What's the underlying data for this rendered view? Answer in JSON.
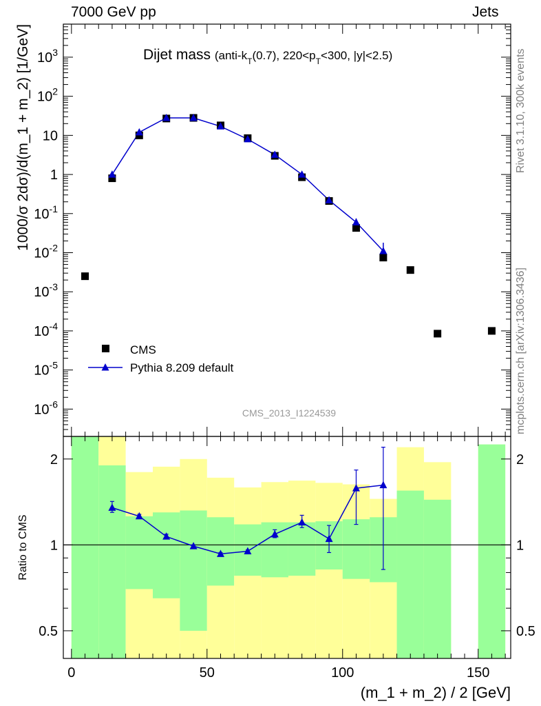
{
  "header": {
    "left": "7000 GeV pp",
    "right": "Jets"
  },
  "side_labels": {
    "upper": "Rivet 3.1.10,  300k events",
    "lower": "mcplots.cern.ch [arXiv:1306.3436]"
  },
  "chart_data": [
    {
      "type": "scatter",
      "panel": "main",
      "title": "Dijet mass",
      "title_note": "(anti-k_T(0.7), 220<p_T<300, |y|<2.5)",
      "watermark": "CMS_2013_I1224539",
      "ylabel": "1000/σ 2dσ)/d(m_1 + m_2) [1/GeV]",
      "yscale": "log",
      "ylim": [
        2e-07,
        7000
      ],
      "xlim": [
        -3,
        162
      ],
      "y_tick_labels": [
        "10^-6",
        "10^-5",
        "10^-4",
        "10^-3",
        "10^-2",
        "10^-1",
        "1",
        "10",
        "10^2",
        "10^3"
      ],
      "legend_position": "lower-left",
      "series": [
        {
          "name": "CMS",
          "marker": "square",
          "color": "#000000",
          "x": [
            5,
            15,
            25,
            35,
            45,
            55,
            65,
            75,
            85,
            95,
            105,
            115,
            125,
            135,
            155
          ],
          "y": [
            0.0025,
            0.8,
            10,
            27,
            28,
            18,
            8.5,
            3.0,
            0.85,
            0.21,
            0.043,
            0.0075,
            0.0036,
            8.5e-05,
            0.0001
          ]
        },
        {
          "name": "Pythia 8.209 default",
          "marker": "triangle",
          "color": "#0000cc",
          "x": [
            15,
            25,
            35,
            45,
            55,
            65,
            75,
            85,
            95,
            105,
            115
          ],
          "y": [
            1.0,
            12,
            28,
            28,
            17,
            8.0,
            3.2,
            1.0,
            0.22,
            0.06,
            0.011
          ],
          "err_lo": [
            0,
            0,
            0,
            0,
            0,
            0,
            0,
            0,
            0,
            0.012,
            0.004
          ],
          "err_hi": [
            0,
            0,
            0,
            0,
            0,
            0,
            0,
            0,
            0,
            0.015,
            0.007
          ]
        }
      ]
    },
    {
      "type": "line",
      "panel": "ratio",
      "ylabel": "Ratio to CMS",
      "xlabel": "(m_1 + m_2) / 2 [GeV]",
      "yscale": "log",
      "ylim": [
        0.4,
        2.4
      ],
      "xlim": [
        -3,
        162
      ],
      "x_ticks": [
        0,
        50,
        100,
        150
      ],
      "y_ticks": [
        0.5,
        1,
        2
      ],
      "reference_line": 1,
      "bands": {
        "edges": [
          0,
          10,
          20,
          30,
          40,
          50,
          60,
          70,
          80,
          90,
          100,
          110,
          120,
          130,
          140,
          150,
          160
        ],
        "green_lo": [
          0.35,
          0.35,
          0.7,
          0.65,
          0.5,
          0.72,
          0.78,
          0.77,
          0.78,
          0.82,
          0.76,
          0.74,
          0.35,
          0.35,
          null,
          0.35
        ],
        "green_hi": [
          2.4,
          1.9,
          1.26,
          1.3,
          1.32,
          1.25,
          1.18,
          1.2,
          1.2,
          1.21,
          1.23,
          1.25,
          1.55,
          1.44,
          null,
          2.25
        ],
        "yellow_lo": [
          0.35,
          0.35,
          0.35,
          0.35,
          0.35,
          0.35,
          0.35,
          0.35,
          0.35,
          0.35,
          0.35,
          0.35,
          0.35,
          0.35,
          null,
          0.35
        ],
        "yellow_hi": [
          2.4,
          2.4,
          1.8,
          1.88,
          2.0,
          1.72,
          1.59,
          1.66,
          1.68,
          1.65,
          1.63,
          1.45,
          2.2,
          1.95,
          null,
          2.25
        ]
      },
      "series": [
        {
          "name": "Pythia 8.209 default",
          "color": "#0000cc",
          "x": [
            15,
            25,
            35,
            45,
            55,
            65,
            75,
            85,
            95,
            105,
            115
          ],
          "y": [
            1.35,
            1.26,
            1.07,
            0.99,
            0.93,
            0.95,
            1.09,
            1.2,
            1.05,
            1.58,
            1.62
          ],
          "err_lo": [
            0.05,
            0.02,
            0.02,
            0.01,
            0.01,
            0.01,
            0.03,
            0.05,
            0.11,
            0.4,
            0.8
          ],
          "err_hi": [
            0.07,
            0.02,
            0.02,
            0.01,
            0.01,
            0.01,
            0.04,
            0.07,
            0.12,
            0.25,
            0.58
          ]
        }
      ]
    }
  ]
}
